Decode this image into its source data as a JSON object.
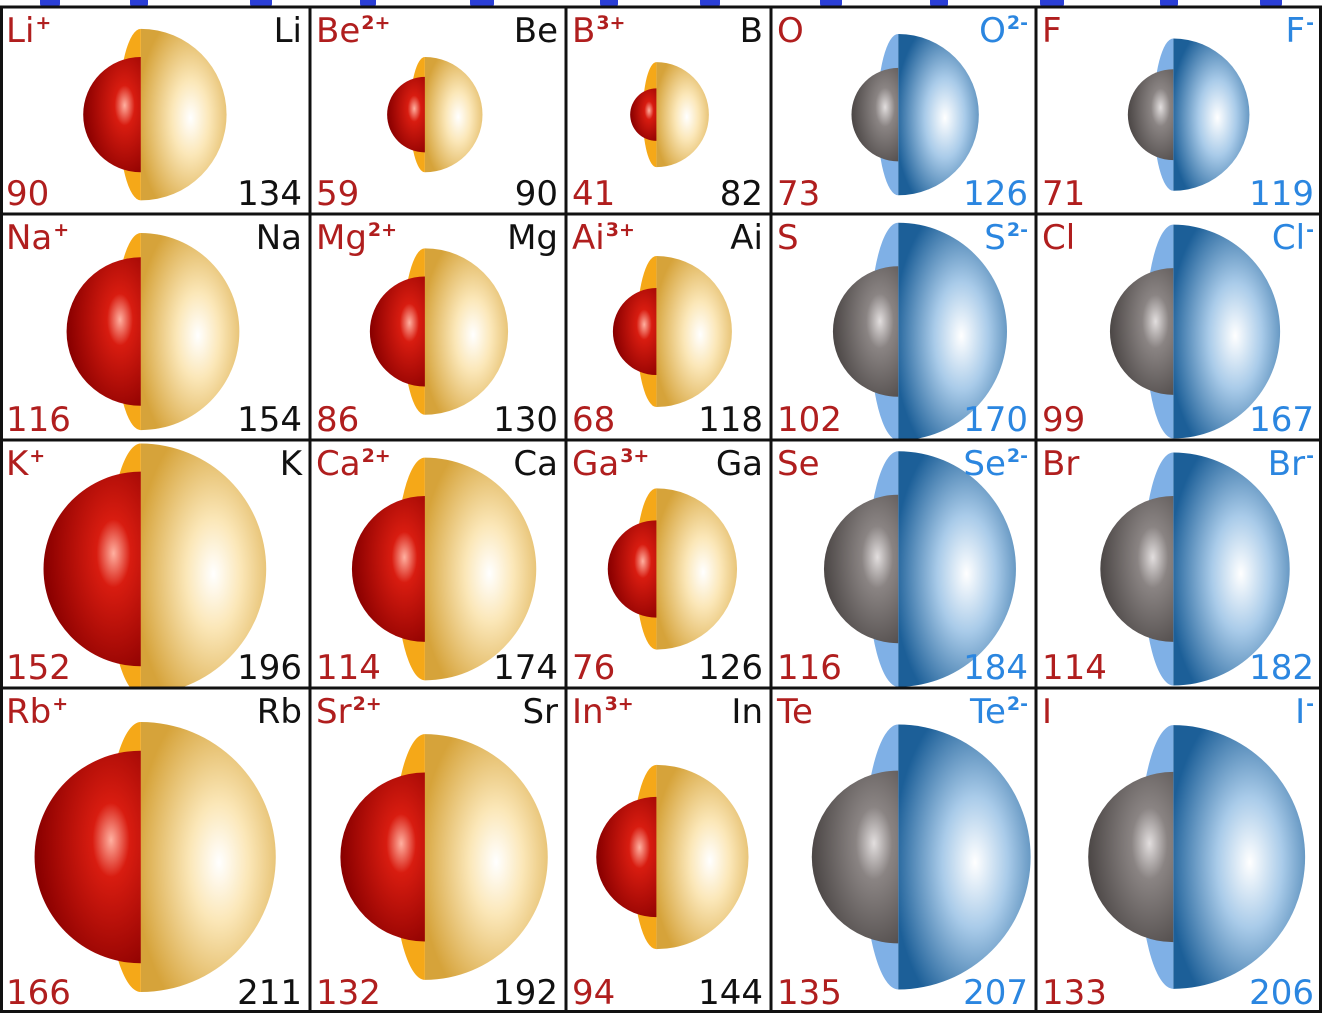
{
  "colors": {
    "cation_label": "#b01e1e",
    "neutral_label": "#111111",
    "anion_label": "#2b86e0",
    "border": "#111111",
    "top_accent": "#2b3fd6",
    "cation_core": "#c40000",
    "metal_shell": "#f0c050",
    "metal_rim": "#f5a818",
    "nonmetal_atom": "#6f6a68",
    "anion_shell": "#2f7ec0",
    "anion_rim": "#7fb0e6"
  },
  "cells": [
    {
      "row": 0,
      "col": 0,
      "kind": "metal",
      "ion_symbol": "Li",
      "ion_charge": "+",
      "atom_symbol": "Li",
      "ion_radius": "90",
      "atom_radius": "134"
    },
    {
      "row": 0,
      "col": 1,
      "kind": "metal",
      "ion_symbol": "Be",
      "ion_charge": "2+",
      "atom_symbol": "Be",
      "ion_radius": "59",
      "atom_radius": "90"
    },
    {
      "row": 0,
      "col": 2,
      "kind": "metal",
      "ion_symbol": "B",
      "ion_charge": "3+",
      "atom_symbol": "B",
      "ion_radius": "41",
      "atom_radius": "82"
    },
    {
      "row": 0,
      "col": 3,
      "kind": "nonmetal",
      "atom_symbol": "O",
      "ion_symbol": "O",
      "ion_charge": "2-",
      "atom_radius": "73",
      "ion_radius": "126"
    },
    {
      "row": 0,
      "col": 4,
      "kind": "nonmetal",
      "atom_symbol": "F",
      "ion_symbol": "F",
      "ion_charge": "-",
      "atom_radius": "71",
      "ion_radius": "119"
    },
    {
      "row": 1,
      "col": 0,
      "kind": "metal",
      "ion_symbol": "Na",
      "ion_charge": "+",
      "atom_symbol": "Na",
      "ion_radius": "116",
      "atom_radius": "154"
    },
    {
      "row": 1,
      "col": 1,
      "kind": "metal",
      "ion_symbol": "Mg",
      "ion_charge": "2+",
      "atom_symbol": "Mg",
      "ion_radius": "86",
      "atom_radius": "130"
    },
    {
      "row": 1,
      "col": 2,
      "kind": "metal",
      "ion_symbol": "Ai",
      "ion_charge": "3+",
      "atom_symbol": "Ai",
      "ion_radius": "68",
      "atom_radius": "118"
    },
    {
      "row": 1,
      "col": 3,
      "kind": "nonmetal",
      "atom_symbol": "S",
      "ion_symbol": "S",
      "ion_charge": "2-",
      "atom_radius": "102",
      "ion_radius": "170"
    },
    {
      "row": 1,
      "col": 4,
      "kind": "nonmetal",
      "atom_symbol": "Cl",
      "ion_symbol": "Cl",
      "ion_charge": "-",
      "atom_radius": "99",
      "ion_radius": "167"
    },
    {
      "row": 2,
      "col": 0,
      "kind": "metal",
      "ion_symbol": "K",
      "ion_charge": "+",
      "atom_symbol": "K",
      "ion_radius": "152",
      "atom_radius": "196"
    },
    {
      "row": 2,
      "col": 1,
      "kind": "metal",
      "ion_symbol": "Ca",
      "ion_charge": "2+",
      "atom_symbol": "Ca",
      "ion_radius": "114",
      "atom_radius": "174"
    },
    {
      "row": 2,
      "col": 2,
      "kind": "metal",
      "ion_symbol": "Ga",
      "ion_charge": "3+",
      "atom_symbol": "Ga",
      "ion_radius": "76",
      "atom_radius": "126"
    },
    {
      "row": 2,
      "col": 3,
      "kind": "nonmetal",
      "atom_symbol": "Se",
      "ion_symbol": "Se",
      "ion_charge": "2-",
      "atom_radius": "116",
      "ion_radius": "184"
    },
    {
      "row": 2,
      "col": 4,
      "kind": "nonmetal",
      "atom_symbol": "Br",
      "ion_symbol": "Br",
      "ion_charge": "-",
      "atom_radius": "114",
      "ion_radius": "182"
    },
    {
      "row": 3,
      "col": 0,
      "kind": "metal",
      "ion_symbol": "Rb",
      "ion_charge": "+",
      "atom_symbol": "Rb",
      "ion_radius": "166",
      "atom_radius": "211"
    },
    {
      "row": 3,
      "col": 1,
      "kind": "metal",
      "ion_symbol": "Sr",
      "ion_charge": "2+",
      "atom_symbol": "Sr",
      "ion_radius": "132",
      "atom_radius": "192"
    },
    {
      "row": 3,
      "col": 2,
      "kind": "metal",
      "ion_symbol": "In",
      "ion_charge": "3+",
      "atom_symbol": "In",
      "ion_radius": "94",
      "atom_radius": "144"
    },
    {
      "row": 3,
      "col": 3,
      "kind": "nonmetal",
      "atom_symbol": "Te",
      "ion_symbol": "Te",
      "ion_charge": "2-",
      "atom_radius": "135",
      "ion_radius": "207"
    },
    {
      "row": 3,
      "col": 4,
      "kind": "nonmetal",
      "atom_symbol": "I",
      "ion_symbol": "I",
      "ion_charge": "-",
      "atom_radius": "133",
      "ion_radius": "206"
    }
  ]
}
